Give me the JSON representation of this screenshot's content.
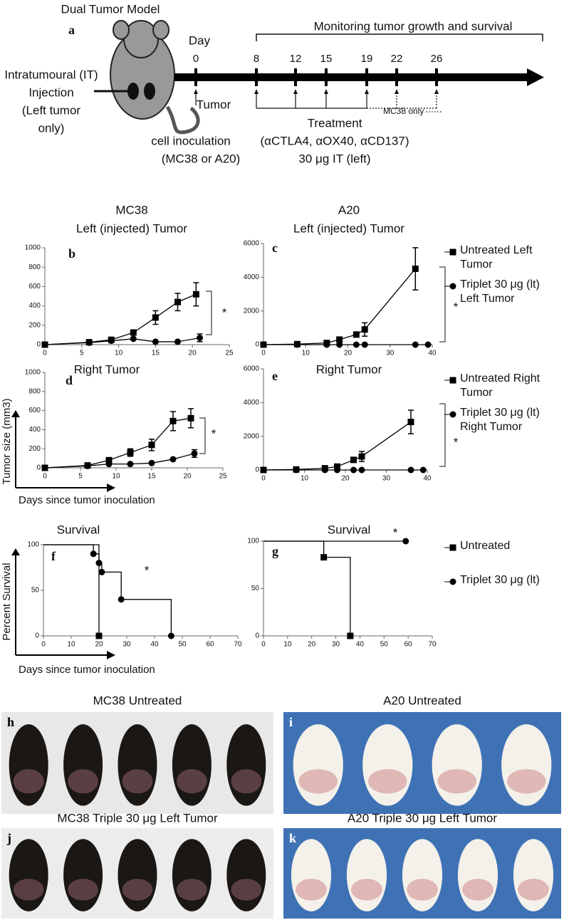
{
  "timeline": {
    "title": "Dual Tumor Model",
    "label": "a",
    "day_label": "Day",
    "days": [
      0,
      8,
      12,
      15,
      19,
      22,
      26
    ],
    "monitoring": "Monitoring tumor growth and survival",
    "injection": [
      "Intratumoural (IT)",
      "Injection",
      "(Left tumor",
      "only)"
    ],
    "inoculation": [
      "Tumor",
      "cell inoculation",
      "(MC38 or A20)"
    ],
    "treatment": [
      "Treatment",
      "(αCTLA4, αOX40, αCD137)",
      "30 μg IT (left)"
    ],
    "mc38_only": "MC38 only"
  },
  "chart_data": [
    {
      "type": "line",
      "label": "b",
      "title": "MC38",
      "subtitle": "Left (injected) Tumor",
      "annotation": "*",
      "xlim": [
        0,
        25
      ],
      "xticks": [
        0,
        5,
        10,
        15,
        20,
        25
      ],
      "ylim": [
        0,
        1000
      ],
      "yticks": [
        0,
        200,
        400,
        600,
        800,
        1000
      ],
      "series": [
        {
          "color": "#000000",
          "marker": "square",
          "x": [
            0,
            6,
            9,
            12,
            15,
            18,
            20.5
          ],
          "values": [
            0,
            25,
            50,
            125,
            280,
            440,
            520
          ],
          "errors": [
            0,
            10,
            15,
            20,
            70,
            90,
            120
          ]
        },
        {
          "color": "#000000",
          "marker": "circle",
          "x": [
            0,
            6,
            9,
            12,
            15,
            18,
            21
          ],
          "values": [
            0,
            20,
            40,
            60,
            30,
            30,
            70
          ],
          "errors": [
            0,
            5,
            10,
            10,
            5,
            5,
            40
          ]
        }
      ]
    },
    {
      "type": "line",
      "label": "c",
      "title": "A20",
      "subtitle": "Left (injected) Tumor",
      "annotation": "*",
      "xlim": [
        0,
        40
      ],
      "xticks": [
        0,
        10,
        20,
        30,
        40
      ],
      "ylim": [
        0,
        6000
      ],
      "yticks": [
        0,
        2000,
        4000,
        6000
      ],
      "series": [
        {
          "name": "Untreated Left Tumor",
          "color": "#000000",
          "marker": "square",
          "x": [
            0,
            8,
            15,
            18,
            22,
            24,
            36
          ],
          "values": [
            0,
            30,
            100,
            300,
            600,
            900,
            4500
          ],
          "errors": [
            0,
            20,
            50,
            100,
            150,
            400,
            1250
          ]
        },
        {
          "name": "Triplet 30 μg (lt) Left Tumor",
          "color": "#000000",
          "marker": "circle",
          "x": [
            0,
            8,
            15,
            18,
            22,
            24,
            36,
            39
          ],
          "values": [
            0,
            0,
            0,
            0,
            0,
            0,
            0,
            0
          ]
        }
      ]
    },
    {
      "type": "line",
      "label": "d",
      "title": "Right Tumor",
      "annotation": "*",
      "ylabel": "Tumor size (mm3)",
      "xlabel": "Days since tumor inoculation",
      "xlim": [
        0,
        25
      ],
      "xticks": [
        0,
        5,
        10,
        15,
        20,
        25
      ],
      "ylim": [
        0,
        1000
      ],
      "yticks": [
        0,
        200,
        400,
        600,
        800,
        1000
      ],
      "series": [
        {
          "color": "#000000",
          "marker": "square",
          "x": [
            0,
            6,
            9,
            12,
            15,
            18,
            20.5
          ],
          "values": [
            0,
            25,
            80,
            160,
            240,
            490,
            520
          ],
          "errors": [
            0,
            5,
            20,
            40,
            60,
            100,
            100
          ]
        },
        {
          "color": "#000000",
          "marker": "circle",
          "x": [
            0,
            6,
            9,
            12,
            15,
            18,
            21
          ],
          "values": [
            0,
            20,
            40,
            40,
            50,
            90,
            150
          ],
          "errors": [
            0,
            5,
            10,
            10,
            10,
            10,
            40
          ]
        }
      ]
    },
    {
      "type": "line",
      "label": "e",
      "title": "Right Tumor",
      "annotation": "*",
      "xlim": [
        0,
        40
      ],
      "xticks": [
        0,
        10,
        20,
        30,
        40
      ],
      "ylim": [
        0,
        6000
      ],
      "yticks": [
        0,
        2000,
        4000,
        6000
      ],
      "series": [
        {
          "name": "Untreated Right Tumor",
          "color": "#000000",
          "marker": "square",
          "x": [
            0,
            8,
            15,
            18,
            22,
            24,
            36
          ],
          "values": [
            0,
            30,
            100,
            200,
            600,
            800,
            2850
          ],
          "errors": [
            0,
            20,
            50,
            80,
            150,
            300,
            700
          ]
        },
        {
          "name": "Triplet 30 μg (lt) Right Tumor",
          "color": "#000000",
          "marker": "circle",
          "x": [
            0,
            8,
            15,
            18,
            22,
            24,
            36,
            39
          ],
          "values": [
            0,
            0,
            0,
            0,
            0,
            0,
            0,
            0
          ]
        }
      ]
    },
    {
      "type": "step",
      "label": "f",
      "title": "Survival",
      "annotation": "*",
      "ylabel": "Percent Survival",
      "xlabel": "Days since tumor inoculation",
      "xlim": [
        0,
        70
      ],
      "xticks": [
        0,
        10,
        20,
        30,
        40,
        50,
        60,
        70
      ],
      "ylim": [
        0,
        100
      ],
      "yticks": [
        0,
        50,
        100
      ],
      "series": [
        {
          "color": "#000000",
          "marker": "square",
          "x": [
            0,
            20
          ],
          "values": [
            100,
            0
          ]
        },
        {
          "color": "#000000",
          "marker": "circle",
          "x": [
            0,
            18,
            20,
            21,
            28,
            46
          ],
          "values": [
            100,
            90,
            80,
            70,
            40,
            0
          ]
        }
      ]
    },
    {
      "type": "step",
      "label": "g",
      "title": "Survival",
      "annotation": "*",
      "xlim": [
        0,
        70
      ],
      "xticks": [
        0,
        10,
        20,
        30,
        40,
        50,
        60,
        70
      ],
      "ylim": [
        0,
        100
      ],
      "yticks": [
        0,
        50,
        100
      ],
      "series": [
        {
          "name": "Untreated",
          "color": "#000000",
          "marker": "square",
          "x": [
            0,
            25,
            36
          ],
          "values": [
            100,
            83,
            0
          ]
        },
        {
          "name": "Triplet 30 μg (lt)",
          "color": "#000000",
          "marker": "circle",
          "x": [
            0,
            59
          ],
          "values": [
            100,
            100
          ]
        }
      ]
    }
  ],
  "photos": [
    {
      "label": "h",
      "title": "MC38 Untreated"
    },
    {
      "label": "i",
      "title": "A20 Untreated"
    },
    {
      "label": "j",
      "title": "MC38 Triple 30 μg Left Tumor"
    },
    {
      "label": "k",
      "title": "A20 Triple 30 μg Left Tumor"
    }
  ]
}
